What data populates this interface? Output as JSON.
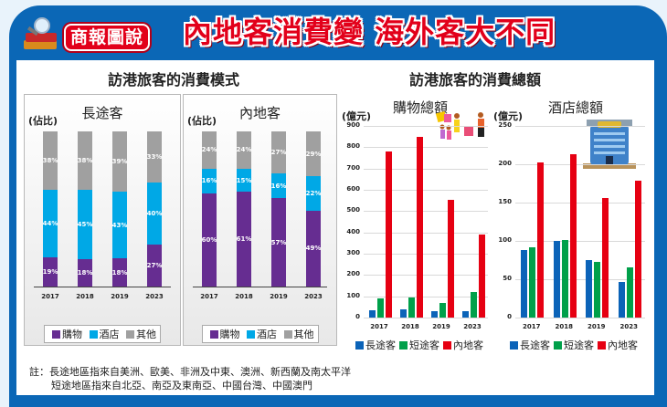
{
  "header": {
    "badge": "商報圖說",
    "headline": "內地客消費變 海外客大不同"
  },
  "left_section": {
    "title": "訪港旅客的消費模式",
    "unit": "(佔比)",
    "legend": [
      "購物",
      "酒店",
      "其他"
    ]
  },
  "right_section": {
    "title": "訪港旅客的消費總額",
    "unit": "(億元)",
    "legend": [
      "長途客",
      "短途客",
      "內地客"
    ]
  },
  "colors": {
    "shopping": "#662d91",
    "hotel": "#00a8e6",
    "other": "#a0a0a0",
    "long_haul": "#0b63b8",
    "short_haul": "#00a04a",
    "mainland": "#e60012"
  },
  "note": {
    "line1": "註：長途地區指來自美洲、歐美、非洲及中東、澳洲、新西蘭及南太平洋",
    "line2": "短途地區指來自北亞、南亞及東南亞、中國台灣、中國澳門"
  },
  "chart_data": [
    {
      "type": "bar",
      "stacked": true,
      "title": "長途客",
      "ylabel": "(佔比)",
      "categories": [
        "2017",
        "2018",
        "2019",
        "2023"
      ],
      "series": [
        {
          "name": "購物",
          "values": [
            19,
            18,
            18,
            27
          ]
        },
        {
          "name": "酒店",
          "values": [
            44,
            45,
            43,
            40
          ]
        },
        {
          "name": "其他",
          "values": [
            38,
            38,
            39,
            33
          ]
        }
      ],
      "legend_position": "bottom"
    },
    {
      "type": "bar",
      "stacked": true,
      "title": "內地客",
      "ylabel": "(佔比)",
      "categories": [
        "2017",
        "2018",
        "2019",
        "2023"
      ],
      "series": [
        {
          "name": "購物",
          "values": [
            60,
            61,
            57,
            49
          ]
        },
        {
          "name": "酒店",
          "values": [
            16,
            15,
            16,
            22
          ]
        },
        {
          "name": "其他",
          "values": [
            24,
            24,
            27,
            29
          ]
        }
      ],
      "legend_position": "bottom"
    },
    {
      "type": "bar",
      "title": "購物總額",
      "ylabel": "(億元)",
      "categories": [
        "2017",
        "2018",
        "2019",
        "2023"
      ],
      "yticks": [
        0,
        100,
        200,
        300,
        400,
        500,
        600,
        700,
        800,
        900
      ],
      "ylim": [
        0,
        900
      ],
      "grid": true,
      "series": [
        {
          "name": "長途客",
          "values": [
            35,
            38,
            32,
            32
          ]
        },
        {
          "name": "短途客",
          "values": [
            92,
            95,
            70,
            120
          ]
        },
        {
          "name": "內地客",
          "values": [
            780,
            850,
            555,
            390
          ]
        }
      ],
      "legend_position": "bottom"
    },
    {
      "type": "bar",
      "title": "酒店總額",
      "ylabel": "(億元)",
      "categories": [
        "2017",
        "2018",
        "2019",
        "2023"
      ],
      "yticks": [
        0,
        50,
        100,
        150,
        200,
        250
      ],
      "ylim": [
        0,
        250
      ],
      "grid": true,
      "series": [
        {
          "name": "長途客",
          "values": [
            88,
            100,
            75,
            47
          ]
        },
        {
          "name": "短途客",
          "values": [
            92,
            101,
            73,
            65
          ]
        },
        {
          "name": "內地客",
          "values": [
            202,
            213,
            156,
            178
          ]
        }
      ],
      "legend_position": "bottom"
    }
  ]
}
